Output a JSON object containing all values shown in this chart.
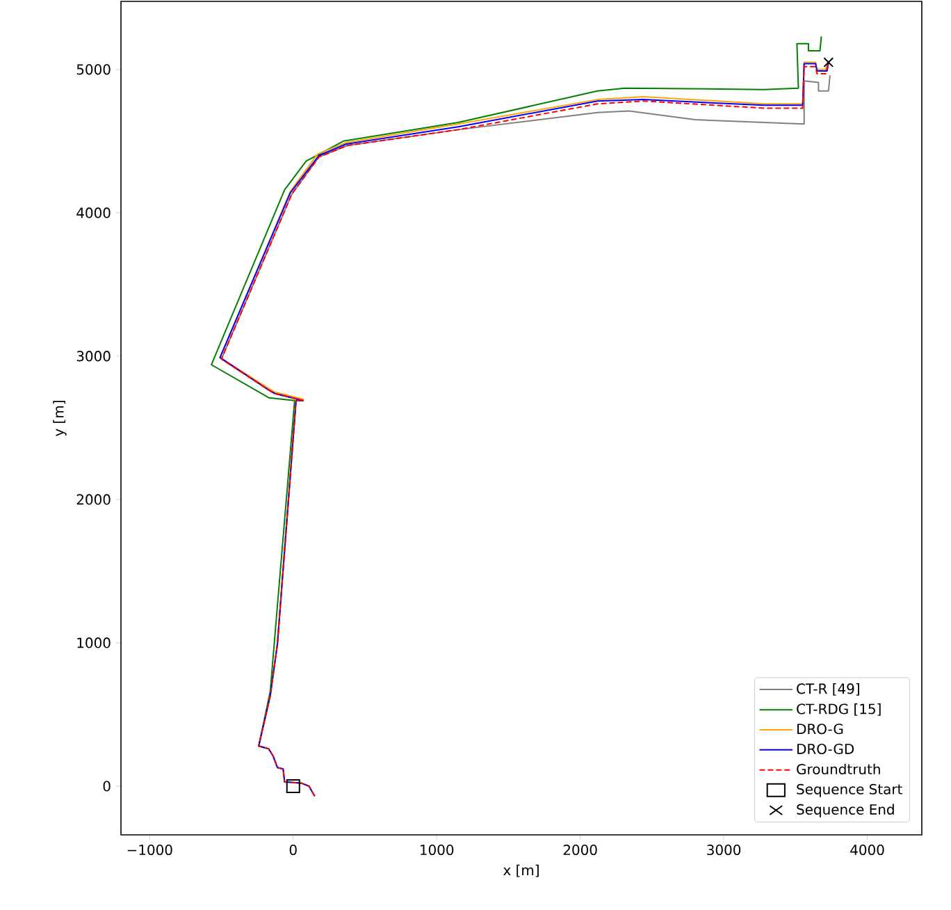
{
  "chart_data": {
    "type": "line",
    "xlabel": "x [m]",
    "ylabel": "y [m]",
    "xlim": [
      -1200,
      4380
    ],
    "ylim": [
      -340,
      5475
    ],
    "xticks": [
      {
        "value": -1000,
        "label": "−1000"
      },
      0,
      1000,
      2000,
      3000,
      4000
    ],
    "yticks": [
      0,
      1000,
      2000,
      3000,
      4000,
      5000
    ],
    "legend": "bottom right",
    "series": [
      {
        "name": "CT-R [49]",
        "color": "#808080",
        "line_style": "solid",
        "marker": "none",
        "x": [
          150,
          110,
          60,
          -60,
          -70,
          -110,
          -140,
          -170,
          -240,
          -160,
          -110,
          20,
          70,
          -130,
          -180,
          -500,
          -10,
          180,
          380,
          1150,
          2120,
          2340,
          2800,
          3280,
          3560,
          3560,
          3660,
          3660,
          3730,
          3740
        ],
        "values": [
          -70,
          0,
          20,
          30,
          120,
          130,
          210,
          260,
          280,
          630,
          990,
          2690,
          2690,
          2740,
          2770,
          2980,
          4130,
          4390,
          4470,
          4580,
          4700,
          4710,
          4650,
          4630,
          4620,
          4920,
          4910,
          4850,
          4850,
          4960
        ]
      },
      {
        "name": "CT-RDG [15]",
        "color": "#008000",
        "line_style": "solid",
        "marker": "none",
        "x": [
          -170,
          -240,
          -160,
          10,
          -170,
          -570,
          -60,
          90,
          350,
          1150,
          2120,
          2310,
          3280,
          3520,
          3510,
          3590,
          3590,
          3670,
          3680
        ],
        "values": [
          260,
          280,
          660,
          2690,
          2710,
          2940,
          4160,
          4360,
          4500,
          4630,
          4850,
          4870,
          4860,
          4870,
          5180,
          5180,
          5130,
          5130,
          5230
        ]
      },
      {
        "name": "DRO-G",
        "color": "#ffa500",
        "line_style": "solid",
        "marker": "none",
        "x": [
          -110,
          20,
          70,
          -130,
          -180,
          -510,
          -20,
          170,
          370,
          1150,
          2120,
          2440,
          3280,
          3550,
          3560,
          3640,
          3650,
          3710,
          3730
        ],
        "values": [
          990,
          2700,
          2700,
          2750,
          2780,
          2990,
          4150,
          4410,
          4490,
          4620,
          4790,
          4810,
          4760,
          4760,
          5050,
          5050,
          5000,
          5000,
          5060
        ]
      },
      {
        "name": "DRO-GD",
        "color": "#0000ff",
        "line_style": "solid",
        "marker": "none",
        "x": [
          150,
          110,
          60,
          -60,
          -70,
          -110,
          -140,
          -170,
          -240,
          -160,
          -110,
          20,
          70,
          -130,
          -180,
          -510,
          -20,
          180,
          370,
          1150,
          2120,
          2440,
          3280,
          3550,
          3560,
          3640,
          3650,
          3720,
          3730
        ],
        "values": [
          -70,
          0,
          20,
          30,
          120,
          130,
          210,
          260,
          280,
          630,
          990,
          2690,
          2690,
          2740,
          2770,
          2990,
          4140,
          4400,
          4480,
          4600,
          4780,
          4790,
          4750,
          4750,
          5040,
          5040,
          4990,
          4990,
          5050
        ]
      },
      {
        "name": "Groundtruth",
        "color": "#ff0000",
        "line_style": "dashed",
        "marker": "none",
        "x": [
          150,
          110,
          60,
          -60,
          -70,
          -110,
          -140,
          -170,
          -240,
          -160,
          -110,
          20,
          70,
          -130,
          -180,
          -500,
          -10,
          180,
          380,
          1150,
          2120,
          2440,
          3280,
          3550,
          3560,
          3640,
          3650,
          3710,
          3730
        ],
        "values": [
          -70,
          0,
          20,
          30,
          120,
          130,
          210,
          260,
          280,
          630,
          990,
          2690,
          2690,
          2740,
          2770,
          2980,
          4130,
          4390,
          4470,
          4580,
          4760,
          4780,
          4730,
          4730,
          5020,
          5020,
          4970,
          4970,
          5050
        ]
      },
      {
        "name": "Sequence Start",
        "color": "#000000",
        "type": "scatter",
        "marker": "square",
        "x": [
          0
        ],
        "values": [
          0
        ]
      },
      {
        "name": "Sequence End",
        "color": "#000000",
        "type": "scatter",
        "marker": "cross",
        "x": [
          3730
        ],
        "values": [
          5050
        ]
      }
    ]
  }
}
